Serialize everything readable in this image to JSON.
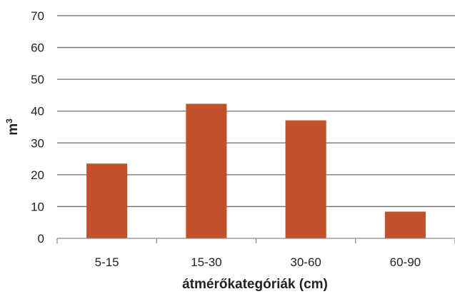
{
  "chart_data": {
    "type": "bar",
    "categories": [
      "5-15",
      "15-30",
      "30-60",
      "60-90"
    ],
    "values": [
      23.5,
      42.3,
      37.1,
      8.4
    ],
    "title": "",
    "xlabel": "átmérőkategóriák (cm)",
    "ylabel": "m",
    "ylabel_superscript": "3",
    "ylim": [
      0,
      70
    ],
    "yticks": [
      0,
      10,
      20,
      30,
      40,
      50,
      60,
      70
    ],
    "grid": true,
    "legend": "none",
    "bar_color": "#c0512a",
    "grid_color": "#6e6e6e",
    "axis_color": "#8a8a8a"
  }
}
